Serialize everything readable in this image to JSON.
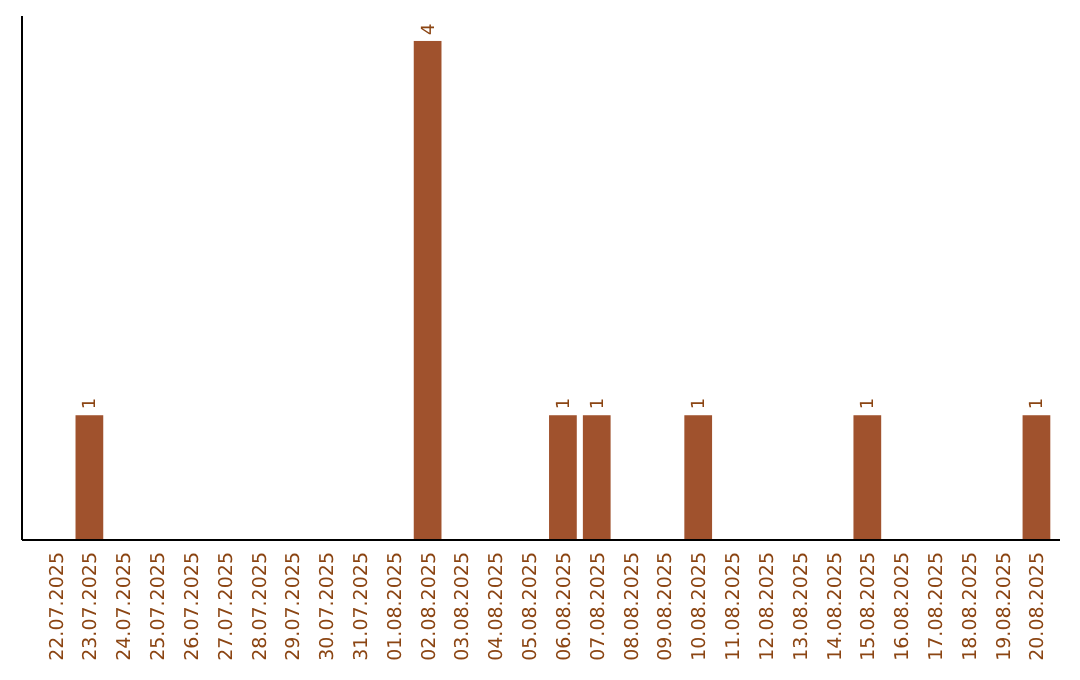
{
  "chart_data": {
    "type": "bar",
    "categories": [
      "22.07.2025",
      "23.07.2025",
      "24.07.2025",
      "25.07.2025",
      "26.07.2025",
      "27.07.2025",
      "28.07.2025",
      "29.07.2025",
      "30.07.2025",
      "31.07.2025",
      "01.08.2025",
      "02.08.2025",
      "03.08.2025",
      "04.08.2025",
      "05.08.2025",
      "06.08.2025",
      "07.08.2025",
      "08.08.2025",
      "09.08.2025",
      "10.08.2025",
      "11.08.2025",
      "12.08.2025",
      "13.08.2025",
      "14.08.2025",
      "15.08.2025",
      "16.08.2025",
      "17.08.2025",
      "18.08.2025",
      "19.08.2025",
      "20.08.2025"
    ],
    "values": [
      0,
      1,
      0,
      0,
      0,
      0,
      0,
      0,
      0,
      0,
      0,
      4,
      0,
      0,
      0,
      1,
      1,
      0,
      0,
      1,
      0,
      0,
      0,
      0,
      1,
      0,
      0,
      0,
      0,
      1
    ],
    "value_labels": [
      null,
      "1",
      null,
      null,
      null,
      null,
      null,
      null,
      null,
      null,
      null,
      "4",
      null,
      null,
      null,
      "1",
      "1",
      null,
      null,
      "1",
      null,
      null,
      null,
      null,
      "1",
      null,
      null,
      null,
      null,
      "1"
    ],
    "color": "#a0522d",
    "tick_labels": "x"
  }
}
